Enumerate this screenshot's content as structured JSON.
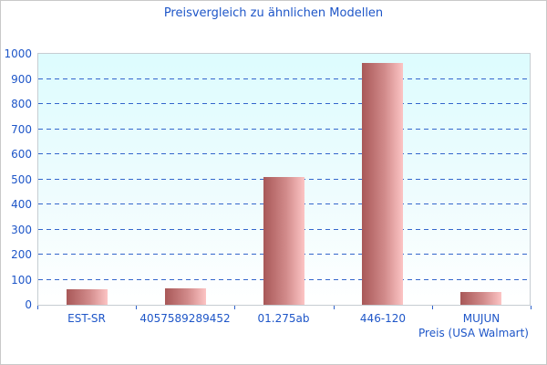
{
  "title": "Preisvergleich zu ähnlichen Modellen",
  "chart_data": {
    "type": "bar",
    "title": "Preisvergleich zu ähnlichen Modellen",
    "categories": [
      "EST-SR",
      "4057589289452",
      "01.275ab",
      "446-120",
      "MUJUN"
    ],
    "values": [
      60,
      65,
      510,
      965,
      50
    ],
    "xlabel": "Preis (USA Walmart)",
    "ylabel": "",
    "ylim": [
      0,
      1000
    ],
    "y_ticks": [
      0,
      100,
      200,
      300,
      400,
      500,
      600,
      700,
      800,
      900,
      1000
    ],
    "grid": "horizontal-dashed-blue",
    "legend_position": "none",
    "plot_background": "vertical gradient cyan to white"
  },
  "colors": {
    "text_blue": "#1e56c8",
    "gridline_blue": "#3366cc",
    "plot_bg_top": "#ddfcfe",
    "plot_bg_bottom": "#ffffff",
    "bar_gradient_left": "#a85858",
    "bar_gradient_right": "#fcc4c4",
    "border_gray": "#c6cdd2"
  }
}
